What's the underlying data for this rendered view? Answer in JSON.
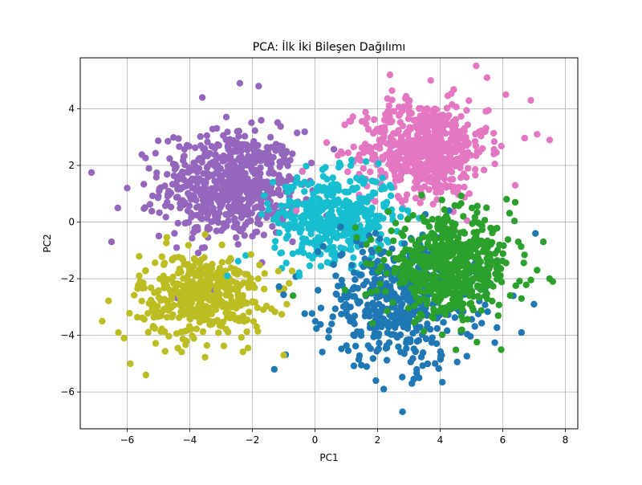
{
  "chart_data": {
    "type": "scatter",
    "title": "PCA: İlk İki Bileşen Dağılımı",
    "xlabel": "PC1",
    "ylabel": "PC2",
    "xlim": [
      -7.5,
      8.4
    ],
    "ylim": [
      -7.3,
      5.8
    ],
    "x_ticks": [
      -6,
      -4,
      -2,
      0,
      2,
      4,
      6,
      8
    ],
    "y_ticks": [
      -6,
      -4,
      -2,
      0,
      2,
      4
    ],
    "x_tick_labels": [
      "−6",
      "−4",
      "−2",
      "0",
      "2",
      "4",
      "6",
      "8"
    ],
    "y_tick_labels": [
      "−6",
      "−4",
      "−2",
      "0",
      "2",
      "4"
    ],
    "grid": true,
    "legend": "none",
    "clusters": [
      {
        "color": "#9467bd",
        "center": [
          -2.7,
          1.3
        ],
        "spread": [
          1.1,
          0.95
        ],
        "count": 650
      },
      {
        "color": "#e377c2",
        "center": [
          3.5,
          2.6
        ],
        "spread": [
          1.0,
          0.85
        ],
        "count": 600
      },
      {
        "color": "#17becf",
        "center": [
          0.6,
          0.2
        ],
        "spread": [
          0.95,
          0.75
        ],
        "count": 450
      },
      {
        "color": "#bcbd22",
        "center": [
          -3.6,
          -2.6
        ],
        "spread": [
          1.0,
          0.75
        ],
        "count": 450
      },
      {
        "color": "#1f77b4",
        "center": [
          2.7,
          -2.8
        ],
        "spread": [
          1.2,
          1.1
        ],
        "count": 500
      },
      {
        "color": "#2ca02c",
        "center": [
          4.3,
          -1.6
        ],
        "spread": [
          1.0,
          0.85
        ],
        "count": 600
      }
    ],
    "outliers": [
      {
        "color": "#9467bd",
        "points": [
          [
            -6.3,
            0.5
          ],
          [
            -6.5,
            -0.7
          ],
          [
            -6.0,
            1.2
          ],
          [
            -2.4,
            4.9
          ],
          [
            -1.8,
            4.8
          ],
          [
            -3.6,
            4.4
          ]
        ]
      },
      {
        "color": "#e377c2",
        "points": [
          [
            7.5,
            2.9
          ],
          [
            7.1,
            3.1
          ],
          [
            6.4,
            1.3
          ],
          [
            2.4,
            5.2
          ],
          [
            3.7,
            5.0
          ],
          [
            5.5,
            5.1
          ],
          [
            6.1,
            4.5
          ],
          [
            6.9,
            4.3
          ],
          [
            -0.6,
            0.4
          ],
          [
            -0.4,
            1.8
          ]
        ]
      },
      {
        "color": "#bcbd22",
        "points": [
          [
            -6.8,
            -3.5
          ],
          [
            -6.1,
            -4.1
          ],
          [
            -5.9,
            -5.0
          ],
          [
            -5.4,
            -5.4
          ],
          [
            -1.0,
            -4.7
          ],
          [
            -0.9,
            -2.9
          ]
        ]
      },
      {
        "color": "#1f77b4",
        "points": [
          [
            2.8,
            -6.7
          ],
          [
            2.2,
            -5.9
          ],
          [
            -1.3,
            -5.2
          ],
          [
            6.6,
            -3.9
          ],
          [
            7.0,
            -2.9
          ],
          [
            3.1,
            -5.7
          ]
        ]
      },
      {
        "color": "#2ca02c",
        "points": [
          [
            7.6,
            -2.1
          ],
          [
            7.3,
            -0.7
          ],
          [
            7.5,
            -2.0
          ],
          [
            6.4,
            0.7
          ],
          [
            7.1,
            -1.7
          ],
          [
            -0.7,
            -2.6
          ],
          [
            6.6,
            -2.7
          ]
        ]
      },
      {
        "color": "#17becf",
        "points": [
          [
            -2.8,
            -1.9
          ],
          [
            -1.1,
            -1.1
          ],
          [
            2.4,
            1.3
          ],
          [
            -0.5,
            -1.9
          ]
        ]
      }
    ]
  }
}
